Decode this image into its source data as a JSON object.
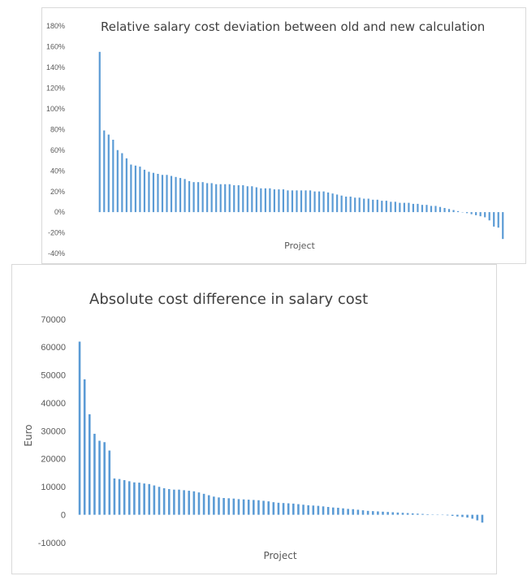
{
  "chart_data": [
    {
      "type": "bar",
      "title": "Relative salary cost deviation between old and new calculation",
      "xlabel": "Project",
      "ylabel": "",
      "ylim": [
        -40,
        180
      ],
      "yticks": [
        "180%",
        "160%",
        "140%",
        "120%",
        "100%",
        "80%",
        "60%",
        "40%",
        "20%",
        "0%",
        "-20%",
        "-40%"
      ],
      "ytick_values": [
        180,
        160,
        140,
        120,
        100,
        80,
        60,
        40,
        20,
        0,
        -20,
        -40
      ],
      "grid": false,
      "legend": "none",
      "bar_color": "#5b9bd5",
      "values": [
        155,
        79,
        75,
        70,
        60,
        57,
        52,
        46,
        45,
        44,
        41,
        39,
        38,
        37,
        36,
        36,
        35,
        34,
        33,
        32,
        30,
        29,
        29,
        29,
        28,
        28,
        27,
        27,
        27,
        27,
        26,
        26,
        26,
        25,
        25,
        24,
        23,
        23,
        23,
        22,
        22,
        22,
        21,
        21,
        21,
        21,
        21,
        21,
        20,
        20,
        20,
        19,
        18,
        17,
        16,
        15,
        15,
        14,
        14,
        13,
        13,
        12,
        12,
        11,
        11,
        10,
        10,
        9,
        9,
        9,
        8,
        8,
        7,
        7,
        6,
        6,
        5,
        4,
        3,
        2,
        1,
        0,
        -1,
        -2,
        -3,
        -4,
        -5,
        -8,
        -14,
        -15,
        -26
      ]
    },
    {
      "type": "bar",
      "title": "Absolute cost difference in salary cost",
      "xlabel": "Project",
      "ylabel": "Euro",
      "ylim": [
        -10000,
        70000
      ],
      "yticks": [
        "70000",
        "60000",
        "50000",
        "40000",
        "30000",
        "20000",
        "10000",
        "0",
        "-10000"
      ],
      "ytick_values": [
        70000,
        60000,
        50000,
        40000,
        30000,
        20000,
        10000,
        0,
        -10000
      ],
      "grid": false,
      "legend": "none",
      "bar_color": "#5b9bd5",
      "values": [
        62000,
        48500,
        36000,
        29000,
        26500,
        26000,
        23000,
        13000,
        12800,
        12400,
        12000,
        11600,
        11500,
        11200,
        11000,
        10500,
        10000,
        9500,
        9200,
        9000,
        9000,
        8800,
        8600,
        8400,
        8000,
        7500,
        7000,
        6500,
        6200,
        6000,
        5900,
        5800,
        5600,
        5500,
        5400,
        5300,
        5200,
        5000,
        4800,
        4500,
        4300,
        4200,
        4100,
        4000,
        3800,
        3600,
        3400,
        3300,
        3200,
        3000,
        2800,
        2600,
        2500,
        2300,
        2100,
        2000,
        1800,
        1600,
        1400,
        1300,
        1200,
        1100,
        1000,
        900,
        800,
        700,
        600,
        500,
        400,
        300,
        200,
        100,
        0,
        -100,
        -200,
        -400,
        -600,
        -800,
        -1000,
        -1400,
        -2000,
        -2800
      ]
    }
  ]
}
